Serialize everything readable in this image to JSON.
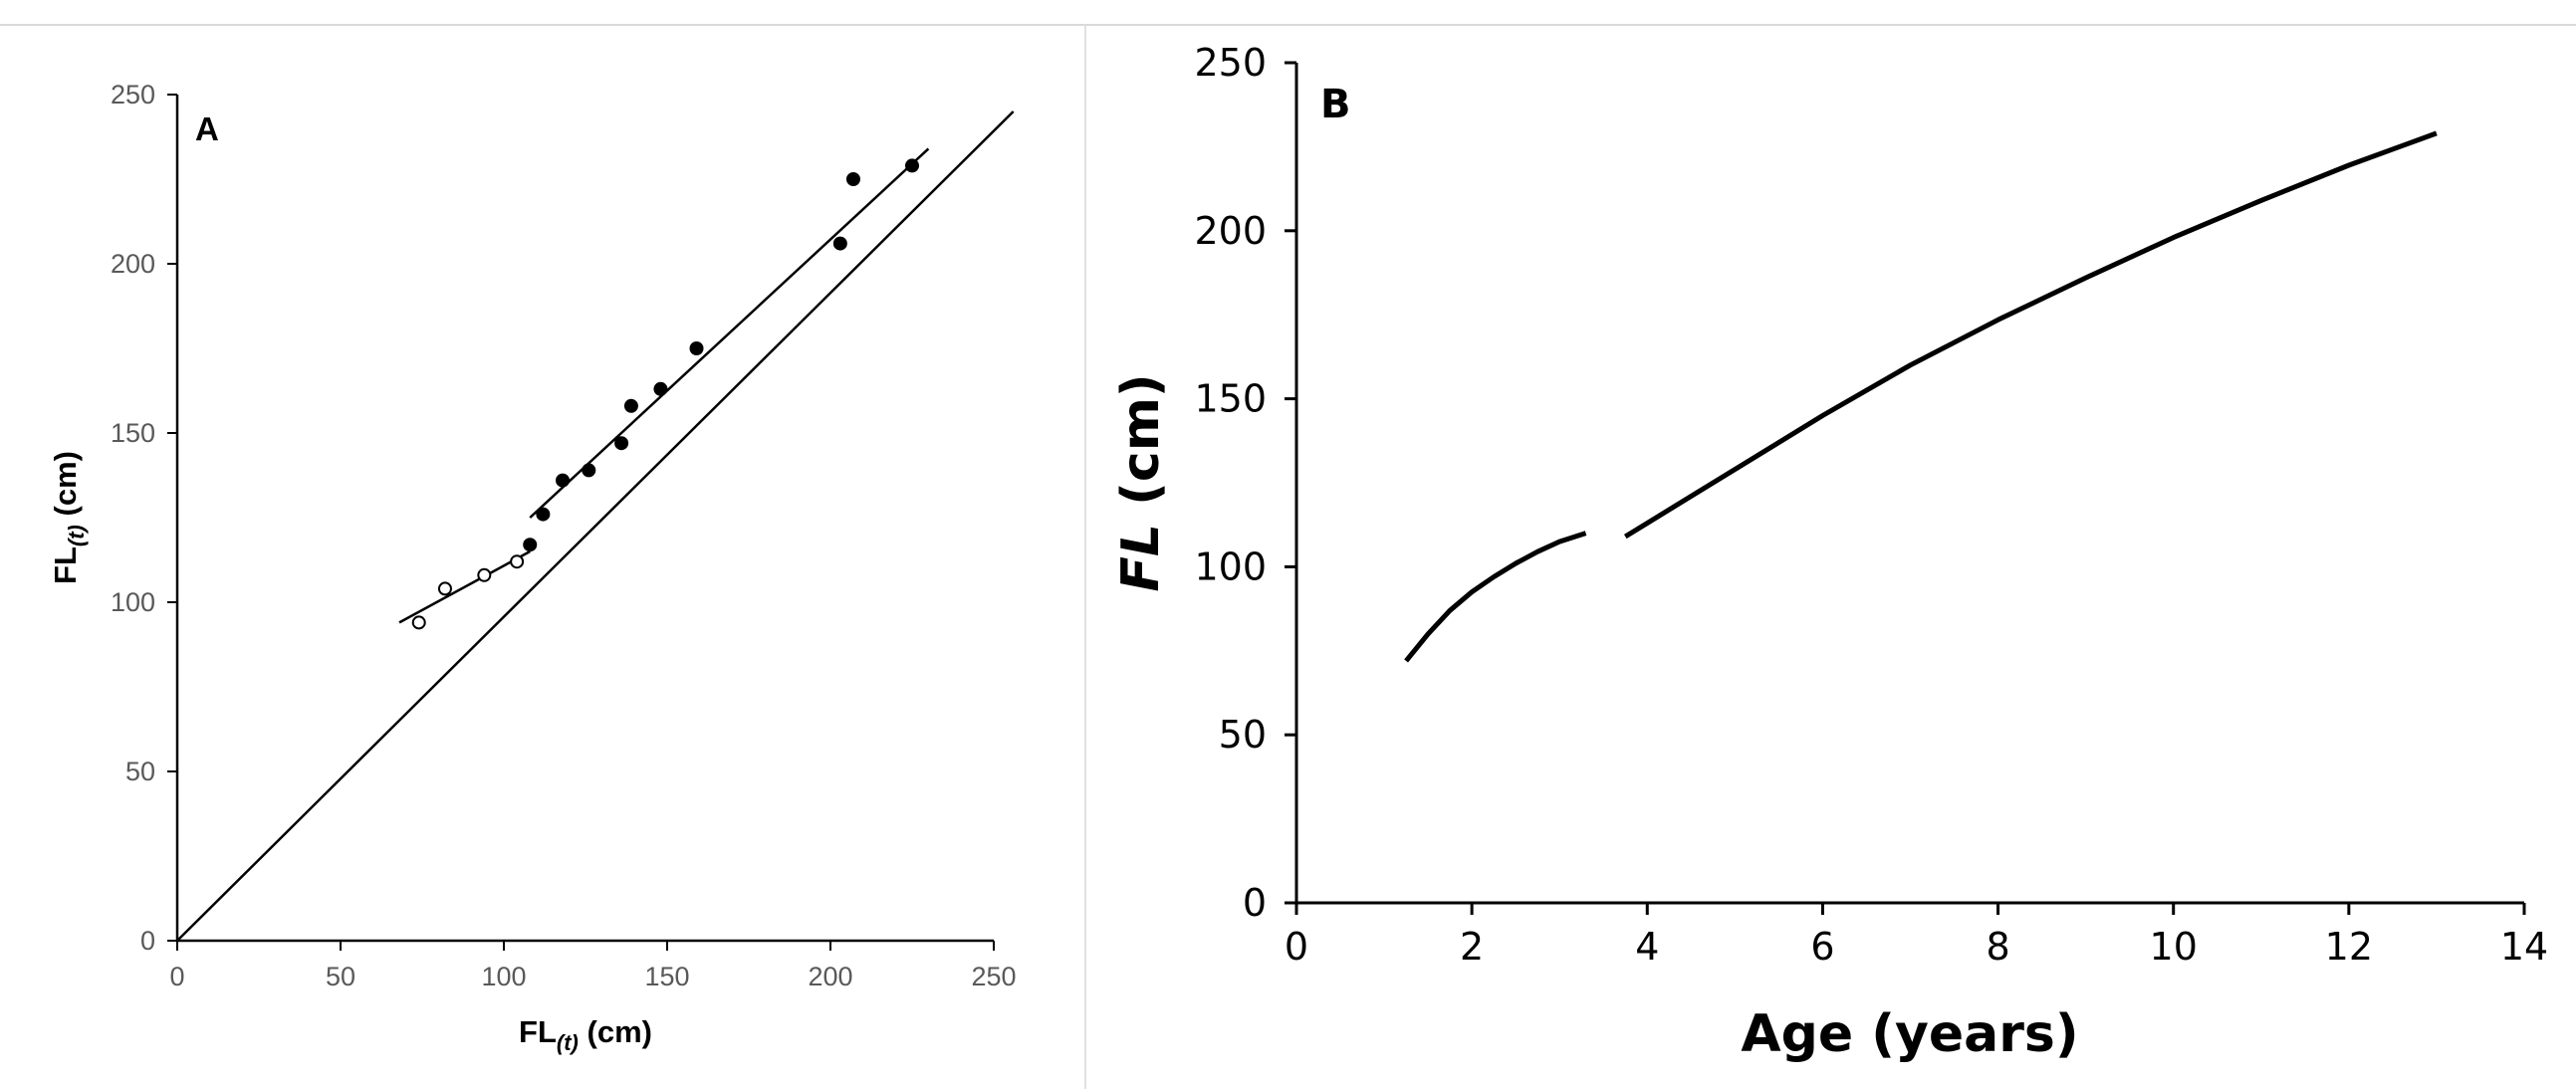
{
  "chart_data": [
    {
      "panel": "A",
      "type": "scatter",
      "xlabel": {
        "main": "FL",
        "sub": "(t)",
        "unit": " (cm)"
      },
      "ylabel": {
        "main": "FL",
        "sub": "(t)",
        "unit": " (cm)"
      },
      "xlim": [
        0,
        250
      ],
      "ylim": [
        0,
        250
      ],
      "xticks": [
        "0",
        "50",
        "100",
        "150",
        "200",
        "250"
      ],
      "yticks": [
        "0",
        "50",
        "100",
        "150",
        "200",
        "250"
      ],
      "grid": false,
      "series": [
        {
          "marker": "open-circle",
          "points": [
            [
              74,
              94
            ],
            [
              82,
              104
            ],
            [
              94,
              108
            ],
            [
              104,
              112
            ]
          ]
        },
        {
          "marker": "filled-circle",
          "points": [
            [
              108,
              117
            ],
            [
              112,
              126
            ],
            [
              118,
              136
            ],
            [
              126,
              139
            ],
            [
              136,
              147
            ],
            [
              139,
              158
            ],
            [
              148,
              163
            ],
            [
              159,
              175
            ],
            [
              203,
              206
            ],
            [
              207,
              225
            ],
            [
              225,
              229
            ]
          ]
        }
      ],
      "lines": [
        {
          "role": "fit-open",
          "from": [
            68,
            94
          ],
          "to": [
            108,
            115
          ]
        },
        {
          "role": "fit-filled",
          "from": [
            108,
            125
          ],
          "to": [
            230,
            234
          ]
        },
        {
          "role": "identity",
          "from": [
            0,
            0
          ],
          "to": [
            256,
            245
          ]
        }
      ]
    },
    {
      "panel": "B",
      "type": "line",
      "xlabel": "Age (years)",
      "ylabel": {
        "main": "FL",
        "unit": " (cm)"
      },
      "xlim": [
        0,
        14
      ],
      "ylim": [
        0,
        250
      ],
      "xticks": [
        "0",
        "2",
        "4",
        "6",
        "8",
        "10",
        "12",
        "14"
      ],
      "yticks": [
        "0",
        "50",
        "100",
        "150",
        "200",
        "250"
      ],
      "grid": false,
      "series": [
        {
          "segment": 1,
          "points": [
            [
              1.25,
              72
            ],
            [
              1.5,
              80
            ],
            [
              1.75,
              87
            ],
            [
              2.0,
              92.5
            ],
            [
              2.25,
              97
            ],
            [
              2.5,
              101
            ],
            [
              2.75,
              104.5
            ],
            [
              3.0,
              107.5
            ],
            [
              3.3,
              110
            ]
          ]
        },
        {
          "segment": 2,
          "points": [
            [
              3.75,
              109
            ],
            [
              4.5,
              121
            ],
            [
              5,
              129
            ],
            [
              6,
              145
            ],
            [
              7,
              160
            ],
            [
              8,
              173.5
            ],
            [
              9,
              186
            ],
            [
              10,
              198
            ],
            [
              11,
              209
            ],
            [
              12,
              219.5
            ],
            [
              13,
              229
            ]
          ]
        }
      ]
    }
  ]
}
